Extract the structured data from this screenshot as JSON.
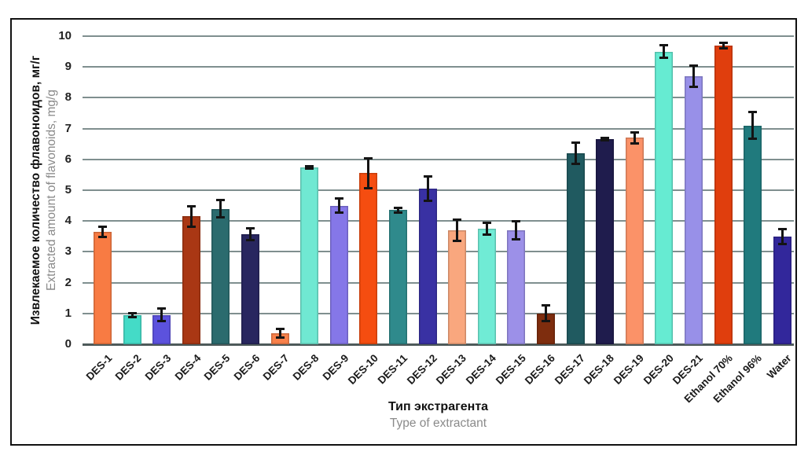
{
  "chart_data": {
    "type": "bar",
    "title": "",
    "ylabel_ru": "Извлекаемое количество флавоноидов, мг/г",
    "ylabel_en": "Extracted amount of flavonoids, mg/g",
    "xlabel_ru": "Тип экстрагента",
    "xlabel_en": "Type of extractant",
    "ylim": [
      0,
      10
    ],
    "ytick_step": 1,
    "grid": true,
    "legend_position": "none",
    "categories": [
      "DES-1",
      "DES-2",
      "DES-3",
      "DES-4",
      "DES-5",
      "DES-6",
      "DES-7",
      "DES-8",
      "DES-9",
      "DES-10",
      "DES-11",
      "DES-12",
      "DES-13",
      "DES-14",
      "DES-15",
      "DES-16",
      "DES-17",
      "DES-18",
      "DES-19",
      "DES-20",
      "DES-21",
      "Ethanol 70%",
      "Ethanol 96%",
      "Water"
    ],
    "values": [
      3.65,
      0.95,
      0.95,
      4.15,
      4.4,
      3.58,
      0.35,
      5.75,
      4.5,
      5.55,
      4.35,
      5.05,
      3.7,
      3.75,
      3.7,
      1.0,
      6.2,
      6.65,
      6.7,
      9.5,
      8.7,
      9.7,
      7.1,
      3.5
    ],
    "errors": [
      0.18,
      0.07,
      0.22,
      0.35,
      0.3,
      0.2,
      0.15,
      0.05,
      0.25,
      0.5,
      0.1,
      0.4,
      0.35,
      0.2,
      0.3,
      0.27,
      0.35,
      0.05,
      0.2,
      0.22,
      0.35,
      0.1,
      0.45,
      0.25
    ],
    "bar_colors": [
      "#F87B43",
      "#44DBC7",
      "#5C52DD",
      "#A93714",
      "#2B6B6E",
      "#28265F",
      "#F9814B",
      "#70E8D2",
      "#8577E8",
      "#F54D10",
      "#2F8A8C",
      "#3931A3",
      "#F9A77E",
      "#70EBD5",
      "#9C90E8",
      "#7E2D0E",
      "#205A60",
      "#1F1C4D",
      "#FB9268",
      "#66EBD2",
      "#9890E8",
      "#E03E0D",
      "#207A7D",
      "#32279B"
    ],
    "gridline_color": "#7f8f8f",
    "axis_color": "#4e5a5a",
    "error_bar_color": "#141414"
  }
}
